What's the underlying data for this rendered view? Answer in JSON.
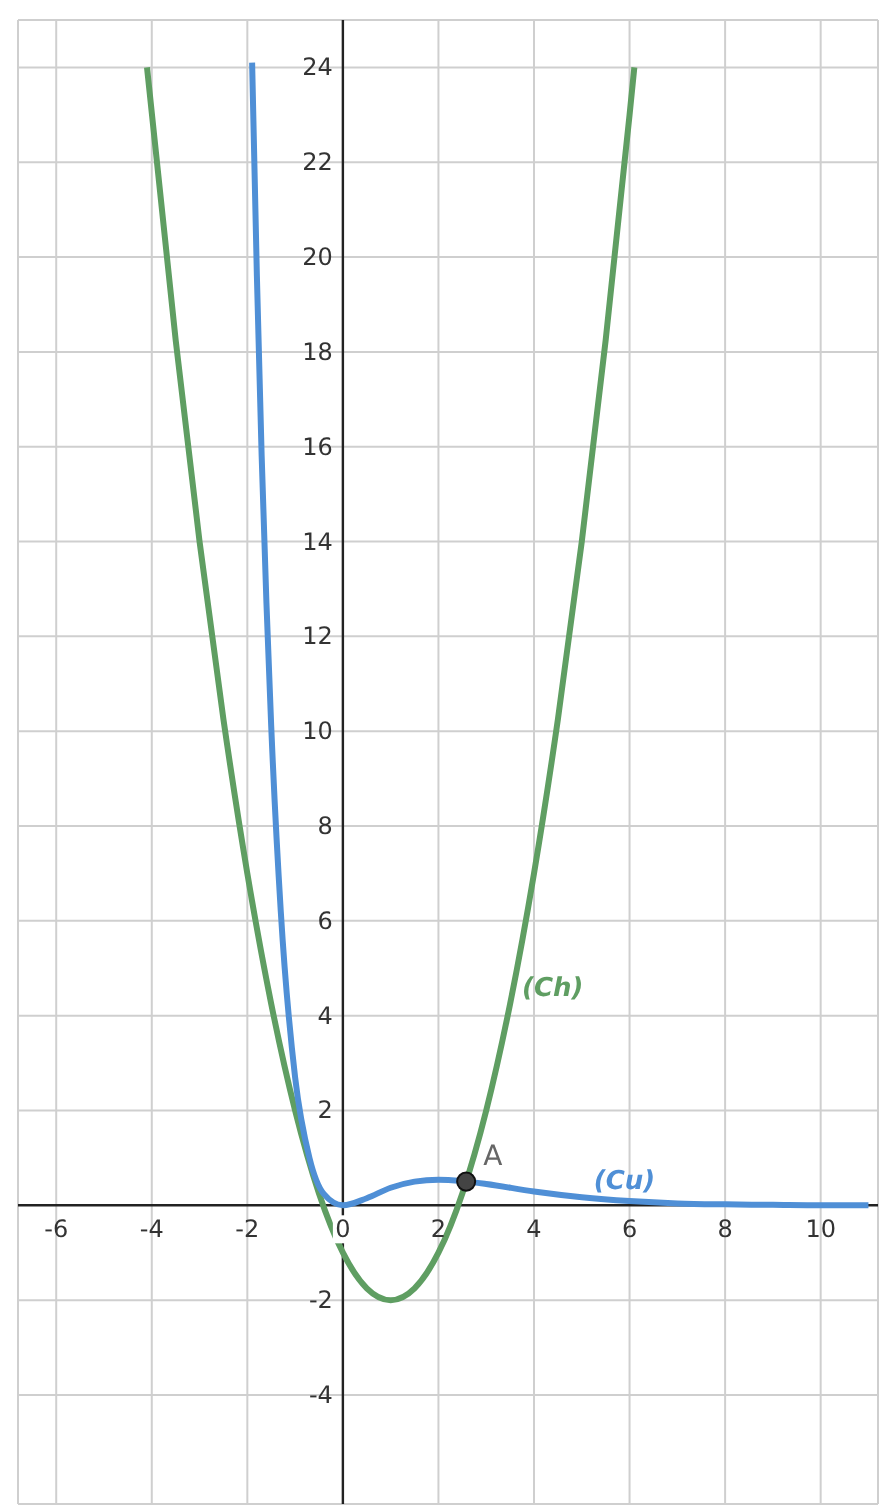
{
  "chart_data": {
    "type": "line",
    "xlim": [
      -6.8,
      11.2
    ],
    "ylim": [
      -6.3,
      25
    ],
    "xticks": [
      -6,
      -4,
      -2,
      0,
      2,
      4,
      6,
      8,
      10
    ],
    "yticks": [
      -4,
      -2,
      2,
      4,
      6,
      8,
      10,
      12,
      14,
      16,
      18,
      20,
      22,
      24
    ],
    "grid": true,
    "marker": "none",
    "line_style": "solid",
    "series": [
      {
        "name": "(Ch)",
        "color": "#5f9e62",
        "x": [
          -4.1,
          -3.5,
          -3,
          -2.5,
          -2,
          -1.5,
          -1,
          -0.5,
          0,
          0.5,
          1,
          1.5,
          2,
          2.5,
          3,
          3.5,
          4,
          4.5,
          5,
          5.5,
          6,
          6.1
        ],
        "values": [
          24,
          18.25,
          14,
          10.25,
          7,
          4.25,
          2,
          0.25,
          -1,
          -1.75,
          -2,
          -1.75,
          -1,
          0.25,
          2,
          4.25,
          7,
          10.25,
          14,
          18.25,
          23,
          24
        ]
      },
      {
        "name": "(Cu)",
        "color": "#4f8fd6",
        "x": [
          -1.9,
          -1.8,
          -1.7,
          -1.6,
          -1.5,
          -1.3,
          -1,
          -0.7,
          -0.4,
          0,
          0.5,
          1,
          1.5,
          2,
          2.5,
          3,
          4,
          5,
          6,
          7,
          8,
          9,
          10,
          11
        ],
        "values": [
          24.1,
          19.6,
          15.8,
          12.7,
          10.1,
          6.2,
          2.7,
          1,
          0.24,
          0,
          0.15,
          0.37,
          0.5,
          0.54,
          0.51,
          0.45,
          0.29,
          0.17,
          0.09,
          0.04,
          0.02,
          0.01,
          0,
          0
        ]
      },
      {
        "type": "scatter",
        "name": "A",
        "color": "#444444",
        "marker": "circle",
        "x": [
          2.58
        ],
        "values": [
          0.5
        ]
      }
    ]
  }
}
